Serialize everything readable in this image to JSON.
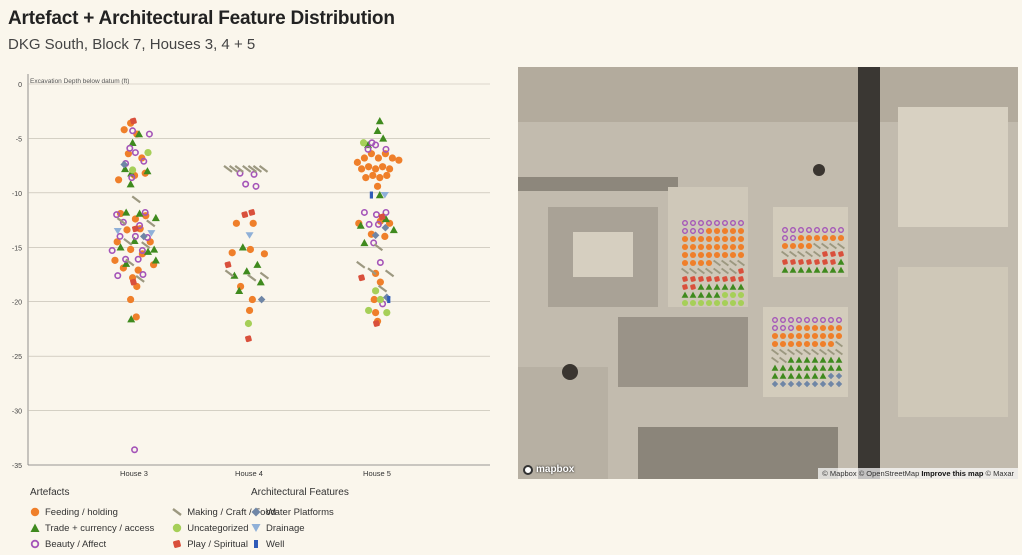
{
  "title": "Artefact + Architectural Feature Distribution",
  "subtitle": "DKG South, Block 7, Houses 3, 4 + 5",
  "colors": {
    "feeding": "#ef7f2a",
    "trade": "#3f8a1e",
    "beauty": "#a454b8",
    "making": "#9c9880",
    "uncategorized": "#a6cf58",
    "play": "#d9503c",
    "water": "#6f86a6",
    "drainage": "#8fb0d8",
    "well": "#2f5bb8"
  },
  "chart_data": {
    "type": "scatter",
    "title": "",
    "ylabel": "Excavation Depth below datum (ft)",
    "ylim": [
      -35,
      0
    ],
    "yticks": [
      0,
      -5,
      -10,
      -15,
      -20,
      -25,
      -30,
      -35
    ],
    "categories": [
      "House 3",
      "House 4",
      "House 5"
    ],
    "series": [
      {
        "name": "Feeding / holding",
        "key": "feeding",
        "points": [
          {
            "c": 0,
            "o": -0.35,
            "y": -4.2
          },
          {
            "c": 0,
            "o": -0.12,
            "y": -3.6
          },
          {
            "c": 0,
            "o": 0.1,
            "y": -4.6
          },
          {
            "c": 0,
            "o": -0.2,
            "y": -6.4
          },
          {
            "c": 0,
            "o": 0.28,
            "y": -6.8
          },
          {
            "c": 0,
            "o": -0.55,
            "y": -8.8
          },
          {
            "c": 0,
            "o": 0.02,
            "y": -8.4
          },
          {
            "c": 0,
            "o": 0.4,
            "y": -8.2
          },
          {
            "c": 0,
            "o": -0.48,
            "y": -11.9
          },
          {
            "c": 0,
            "o": 0.05,
            "y": -12.4
          },
          {
            "c": 0,
            "o": 0.42,
            "y": -12.1
          },
          {
            "c": 0,
            "o": -0.25,
            "y": -13.4
          },
          {
            "c": 0,
            "o": 0.22,
            "y": -13.3
          },
          {
            "c": 0,
            "o": -0.6,
            "y": -14.5
          },
          {
            "c": 0,
            "o": 0.58,
            "y": -14.5
          },
          {
            "c": 0,
            "o": -0.12,
            "y": -15.2
          },
          {
            "c": 0,
            "o": 0.3,
            "y": -15.6
          },
          {
            "c": 0,
            "o": -0.68,
            "y": -16.2
          },
          {
            "c": 0,
            "o": 0.7,
            "y": -16.6
          },
          {
            "c": 0,
            "o": -0.38,
            "y": -16.9
          },
          {
            "c": 0,
            "o": 0.15,
            "y": -17.1
          },
          {
            "c": 0,
            "o": -0.05,
            "y": -17.8
          },
          {
            "c": 0,
            "o": 0.1,
            "y": -18.6
          },
          {
            "c": 0,
            "o": -0.12,
            "y": -19.8
          },
          {
            "c": 0,
            "o": 0.08,
            "y": -21.4
          },
          {
            "c": 1,
            "o": -0.45,
            "y": -12.8
          },
          {
            "c": 1,
            "o": 0.15,
            "y": -12.8
          },
          {
            "c": 1,
            "o": -0.6,
            "y": -15.5
          },
          {
            "c": 1,
            "o": 0.05,
            "y": -15.2
          },
          {
            "c": 1,
            "o": 0.55,
            "y": -15.6
          },
          {
            "c": 1,
            "o": -0.3,
            "y": -18.6
          },
          {
            "c": 1,
            "o": 0.12,
            "y": -19.8
          },
          {
            "c": 1,
            "o": 0.02,
            "y": -20.8
          },
          {
            "c": 2,
            "o": -0.7,
            "y": -7.2
          },
          {
            "c": 2,
            "o": -0.45,
            "y": -6.8
          },
          {
            "c": 2,
            "o": -0.2,
            "y": -6.4
          },
          {
            "c": 2,
            "o": 0.05,
            "y": -6.8
          },
          {
            "c": 2,
            "o": 0.3,
            "y": -6.4
          },
          {
            "c": 2,
            "o": 0.55,
            "y": -6.8
          },
          {
            "c": 2,
            "o": 0.78,
            "y": -7.0
          },
          {
            "c": 2,
            "o": -0.55,
            "y": -7.8
          },
          {
            "c": 2,
            "o": -0.3,
            "y": -7.6
          },
          {
            "c": 2,
            "o": -0.05,
            "y": -7.8
          },
          {
            "c": 2,
            "o": 0.2,
            "y": -7.6
          },
          {
            "c": 2,
            "o": 0.45,
            "y": -7.8
          },
          {
            "c": 2,
            "o": -0.4,
            "y": -8.6
          },
          {
            "c": 2,
            "o": -0.15,
            "y": -8.4
          },
          {
            "c": 2,
            "o": 0.1,
            "y": -8.6
          },
          {
            "c": 2,
            "o": 0.35,
            "y": -8.4
          },
          {
            "c": 2,
            "o": 0.02,
            "y": -9.4
          },
          {
            "c": 2,
            "o": -0.65,
            "y": -12.8
          },
          {
            "c": 2,
            "o": 0.12,
            "y": -12.6
          },
          {
            "c": 2,
            "o": 0.45,
            "y": -12.8
          },
          {
            "c": 2,
            "o": -0.2,
            "y": -13.8
          },
          {
            "c": 2,
            "o": 0.28,
            "y": -14.0
          },
          {
            "c": 2,
            "o": -0.05,
            "y": -17.4
          },
          {
            "c": 2,
            "o": 0.12,
            "y": -18.2
          },
          {
            "c": 2,
            "o": -0.1,
            "y": -19.8
          },
          {
            "c": 2,
            "o": -0.05,
            "y": -21.0
          },
          {
            "c": 2,
            "o": 0.02,
            "y": -21.8
          }
        ]
      },
      {
        "name": "Trade + currency / access",
        "key": "trade",
        "points": [
          {
            "c": 0,
            "o": 0.18,
            "y": -4.6
          },
          {
            "c": 0,
            "o": -0.05,
            "y": -5.4
          },
          {
            "c": 0,
            "o": -0.32,
            "y": -7.8
          },
          {
            "c": 0,
            "o": 0.48,
            "y": -8.0
          },
          {
            "c": 0,
            "o": -0.1,
            "y": -8.2
          },
          {
            "c": 0,
            "o": -0.12,
            "y": -9.2
          },
          {
            "c": 0,
            "o": -0.28,
            "y": -11.8
          },
          {
            "c": 0,
            "o": 0.2,
            "y": -11.9
          },
          {
            "c": 0,
            "o": 0.78,
            "y": -12.3
          },
          {
            "c": 0,
            "o": 0.02,
            "y": -14.4
          },
          {
            "c": 0,
            "o": -0.48,
            "y": -15.0
          },
          {
            "c": 0,
            "o": 0.5,
            "y": -15.4
          },
          {
            "c": 0,
            "o": 0.72,
            "y": -15.2
          },
          {
            "c": 0,
            "o": -0.28,
            "y": -16.5
          },
          {
            "c": 0,
            "o": 0.78,
            "y": -16.2
          },
          {
            "c": 0,
            "o": -0.1,
            "y": -21.6
          },
          {
            "c": 1,
            "o": -0.22,
            "y": -15.0
          },
          {
            "c": 1,
            "o": 0.3,
            "y": -16.6
          },
          {
            "c": 1,
            "o": -0.08,
            "y": -17.2
          },
          {
            "c": 1,
            "o": -0.52,
            "y": -17.6
          },
          {
            "c": 1,
            "o": 0.42,
            "y": -18.2
          },
          {
            "c": 1,
            "o": -0.35,
            "y": -19.0
          },
          {
            "c": 2,
            "o": 0.1,
            "y": -3.4
          },
          {
            "c": 2,
            "o": 0.02,
            "y": -4.3
          },
          {
            "c": 2,
            "o": 0.22,
            "y": -5.0
          },
          {
            "c": 2,
            "o": -0.32,
            "y": -5.6
          },
          {
            "c": 2,
            "o": 0.1,
            "y": -10.2
          },
          {
            "c": 2,
            "o": 0.32,
            "y": -12.4
          },
          {
            "c": 2,
            "o": -0.58,
            "y": -13.0
          },
          {
            "c": 2,
            "o": 0.6,
            "y": -13.4
          },
          {
            "c": 2,
            "o": -0.45,
            "y": -14.6
          }
        ]
      },
      {
        "name": "Beauty / Affect",
        "key": "beauty",
        "points": [
          {
            "c": 0,
            "o": -0.05,
            "y": -4.3
          },
          {
            "c": 0,
            "o": 0.55,
            "y": -4.6
          },
          {
            "c": 0,
            "o": -0.15,
            "y": -5.9
          },
          {
            "c": 0,
            "o": 0.05,
            "y": -6.3
          },
          {
            "c": 0,
            "o": -0.3,
            "y": -7.3
          },
          {
            "c": 0,
            "o": 0.35,
            "y": -7.1
          },
          {
            "c": 0,
            "o": -0.08,
            "y": -8.6
          },
          {
            "c": 0,
            "o": -0.62,
            "y": -12.0
          },
          {
            "c": 0,
            "o": 0.4,
            "y": -11.8
          },
          {
            "c": 0,
            "o": -0.38,
            "y": -12.7
          },
          {
            "c": 0,
            "o": 0.2,
            "y": -13.0
          },
          {
            "c": 0,
            "o": -0.5,
            "y": -14.0
          },
          {
            "c": 0,
            "o": 0.05,
            "y": -14.0
          },
          {
            "c": 0,
            "o": 0.48,
            "y": -14.1
          },
          {
            "c": 0,
            "o": -0.78,
            "y": -15.3
          },
          {
            "c": 0,
            "o": 0.3,
            "y": -15.3
          },
          {
            "c": 0,
            "o": -0.3,
            "y": -16.1
          },
          {
            "c": 0,
            "o": 0.15,
            "y": -16.1
          },
          {
            "c": 0,
            "o": -0.58,
            "y": -17.6
          },
          {
            "c": 0,
            "o": 0.32,
            "y": -17.5
          },
          {
            "c": 0,
            "o": 0.02,
            "y": -33.6
          },
          {
            "c": 1,
            "o": -0.32,
            "y": -8.2
          },
          {
            "c": 1,
            "o": 0.18,
            "y": -8.3
          },
          {
            "c": 1,
            "o": -0.12,
            "y": -9.2
          },
          {
            "c": 1,
            "o": 0.25,
            "y": -9.4
          },
          {
            "c": 2,
            "o": -0.18,
            "y": -5.4
          },
          {
            "c": 2,
            "o": -0.05,
            "y": -5.6
          },
          {
            "c": 2,
            "o": -0.32,
            "y": -6.0
          },
          {
            "c": 2,
            "o": 0.32,
            "y": -6.0
          },
          {
            "c": 2,
            "o": -0.45,
            "y": -11.8
          },
          {
            "c": 2,
            "o": -0.02,
            "y": -12.0
          },
          {
            "c": 2,
            "o": 0.32,
            "y": -11.8
          },
          {
            "c": 2,
            "o": -0.28,
            "y": -12.9
          },
          {
            "c": 2,
            "o": 0.05,
            "y": -12.9
          },
          {
            "c": 2,
            "o": -0.12,
            "y": -14.6
          },
          {
            "c": 2,
            "o": 0.12,
            "y": -16.4
          },
          {
            "c": 2,
            "o": 0.2,
            "y": -20.2
          }
        ]
      },
      {
        "name": "Making / Craft / Food",
        "key": "making",
        "points": [
          {
            "c": 0,
            "o": 0.08,
            "y": -10.6
          },
          {
            "c": 0,
            "o": -0.45,
            "y": -12.6
          },
          {
            "c": 0,
            "o": 0.6,
            "y": -12.8
          },
          {
            "c": 0,
            "o": -0.22,
            "y": -14.5
          },
          {
            "c": 0,
            "o": 0.42,
            "y": -14.8
          },
          {
            "c": 0,
            "o": -0.15,
            "y": -16.4
          },
          {
            "c": 0,
            "o": 0.22,
            "y": -17.9
          },
          {
            "c": 1,
            "o": -0.75,
            "y": -7.8
          },
          {
            "c": 1,
            "o": -0.55,
            "y": -7.8
          },
          {
            "c": 1,
            "o": -0.35,
            "y": -7.8
          },
          {
            "c": 1,
            "o": -0.08,
            "y": -7.8
          },
          {
            "c": 1,
            "o": 0.12,
            "y": -7.8
          },
          {
            "c": 1,
            "o": 0.3,
            "y": -7.8
          },
          {
            "c": 1,
            "o": 0.52,
            "y": -7.8
          },
          {
            "c": 1,
            "o": -0.7,
            "y": -17.4
          },
          {
            "c": 1,
            "o": 0.1,
            "y": -17.8
          },
          {
            "c": 1,
            "o": 0.55,
            "y": -17.6
          },
          {
            "c": 2,
            "o": 0.05,
            "y": -15.0
          },
          {
            "c": 2,
            "o": -0.58,
            "y": -16.6
          },
          {
            "c": 2,
            "o": -0.18,
            "y": -17.2
          },
          {
            "c": 2,
            "o": 0.45,
            "y": -17.4
          },
          {
            "c": 2,
            "o": 0.2,
            "y": -18.8
          }
        ]
      },
      {
        "name": "Uncategorized",
        "key": "uncategorized",
        "points": [
          {
            "c": 0,
            "o": -0.05,
            "y": -7.9
          },
          {
            "c": 0,
            "o": 0.5,
            "y": -6.3
          },
          {
            "c": 1,
            "o": -0.02,
            "y": -22.0
          },
          {
            "c": 2,
            "o": -0.48,
            "y": -5.4
          },
          {
            "c": 2,
            "o": -0.05,
            "y": -19.0
          },
          {
            "c": 2,
            "o": 0.12,
            "y": -19.8
          },
          {
            "c": 2,
            "o": 0.35,
            "y": -21.0
          },
          {
            "c": 2,
            "o": -0.3,
            "y": -20.8
          }
        ]
      },
      {
        "name": "Play / Spiritual",
        "key": "play",
        "points": [
          {
            "c": 0,
            "o": -0.02,
            "y": -3.4
          },
          {
            "c": 0,
            "o": 0.05,
            "y": -13.3
          },
          {
            "c": 0,
            "o": -0.02,
            "y": -18.2
          },
          {
            "c": 1,
            "o": -0.15,
            "y": -12.0
          },
          {
            "c": 1,
            "o": 0.1,
            "y": -11.8
          },
          {
            "c": 1,
            "o": -0.75,
            "y": -16.6
          },
          {
            "c": 1,
            "o": -0.02,
            "y": -23.4
          },
          {
            "c": 2,
            "o": 0.18,
            "y": -12.2
          },
          {
            "c": 2,
            "o": -0.55,
            "y": -17.8
          },
          {
            "c": 2,
            "o": -0.02,
            "y": -22.0
          }
        ]
      },
      {
        "name": "Water Platforms",
        "key": "water",
        "points": [
          {
            "c": 0,
            "o": -0.35,
            "y": -7.4
          },
          {
            "c": 0,
            "o": 0.35,
            "y": -14.0
          },
          {
            "c": 1,
            "o": 0.45,
            "y": -19.8
          },
          {
            "c": 2,
            "o": -0.05,
            "y": -13.9
          },
          {
            "c": 2,
            "o": 0.3,
            "y": -13.2
          },
          {
            "c": 2,
            "o": 0.35,
            "y": -19.6
          }
        ]
      },
      {
        "name": "Drainage",
        "key": "drainage",
        "points": [
          {
            "c": 0,
            "o": -0.58,
            "y": -13.5
          },
          {
            "c": 0,
            "o": 0.62,
            "y": -13.7
          },
          {
            "c": 1,
            "o": 0.02,
            "y": -13.9
          },
          {
            "c": 2,
            "o": 0.28,
            "y": -10.2
          }
        ]
      },
      {
        "name": "Well",
        "key": "well",
        "points": [
          {
            "c": 2,
            "o": -0.2,
            "y": -10.2
          },
          {
            "c": 2,
            "o": 0.42,
            "y": -19.8
          }
        ]
      }
    ]
  },
  "legend": {
    "artefacts_heading": "Artefacts",
    "features_heading": "Architectural Features",
    "items": {
      "feeding": "Feeding / holding",
      "trade": "Trade + currency / access",
      "beauty": "Beauty / Affect",
      "making": "Making / Craft / Food",
      "uncategorized": "Uncategorized",
      "play": "Play / Spiritual",
      "water": "Water Platforms",
      "drainage": "Drainage",
      "well": "Well"
    }
  },
  "map": {
    "logo": "mapbox",
    "attribution_1": "© Mapbox",
    "attribution_2": "© OpenStreetMap",
    "attribution_improve": "Improve this map",
    "attribution_3": "© Maxar"
  }
}
